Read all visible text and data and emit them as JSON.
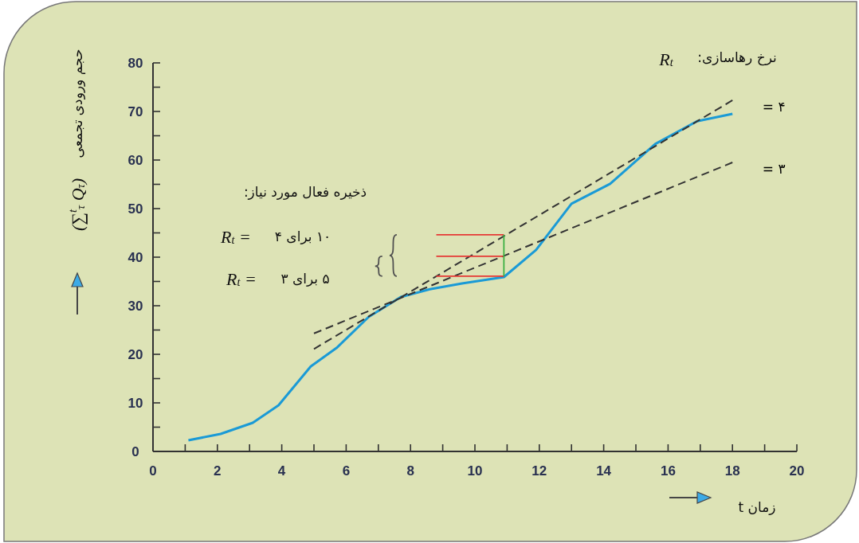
{
  "chart_data": {
    "type": "line",
    "xlabel": "زمان t",
    "ylabel": "حجم ورودی تجمعی",
    "xlim": [
      0,
      20
    ],
    "ylim": [
      0,
      80
    ],
    "xticks": [
      0,
      2,
      4,
      6,
      8,
      10,
      12,
      14,
      16,
      18,
      20
    ],
    "yticks": [
      0,
      10,
      20,
      30,
      40,
      50,
      60,
      70,
      80
    ],
    "annotations": [
      "ذخیره فعال مورد نیاز:",
      "R$_{t}$ =",
      "۱۰ برای ۴",
      "R$_{t}$ =",
      "۵ برای ۳",
      "نرخ رهاسازی:",
      "R$_{t}$",
      "(∑$^{t}$$_{τ}$ Q$_{τ}$)"
    ],
    "series": [
      {
        "color": "#1a9ad6",
        "x": [
          1.1,
          2.1,
          3.1,
          3.9,
          4.9,
          5.7,
          6.7,
          7.7,
          8.6,
          9.6,
          10.9,
          11.9,
          13.0,
          14.2,
          15.6,
          16.9,
          18.0
        ],
        "values": [
          2.3,
          3.6,
          5.9,
          9.5,
          17.5,
          21.3,
          27.7,
          31.8,
          33.4,
          34.6,
          35.9,
          41.5,
          51.0,
          55.1,
          63.3,
          68.0,
          69.5
        ]
      },
      {
        "name": "= ۴",
        "color": "#333333",
        "line_style": "dashed",
        "x": [
          5.0,
          18.0
        ],
        "values": [
          21.1,
          72.3
        ]
      },
      {
        "name": "= ۳",
        "color": "#333333",
        "line_style": "dashed",
        "x": [
          5.0,
          18.0
        ],
        "values": [
          24.3,
          59.5
        ]
      },
      {
        "color": "#e53935",
        "x": [
          8.8,
          10.9
        ],
        "values": [
          44.6,
          44.6
        ]
      },
      {
        "color": "#e53935",
        "x": [
          8.8,
          10.9
        ],
        "values": [
          40.2,
          40.2
        ]
      },
      {
        "color": "#e53935",
        "x": [
          8.8,
          10.9
        ],
        "values": [
          36.1,
          36.1
        ]
      },
      {
        "color": "#3cb043",
        "x": [
          10.9,
          10.9
        ],
        "values": [
          36.1,
          44.6
        ]
      }
    ]
  }
}
